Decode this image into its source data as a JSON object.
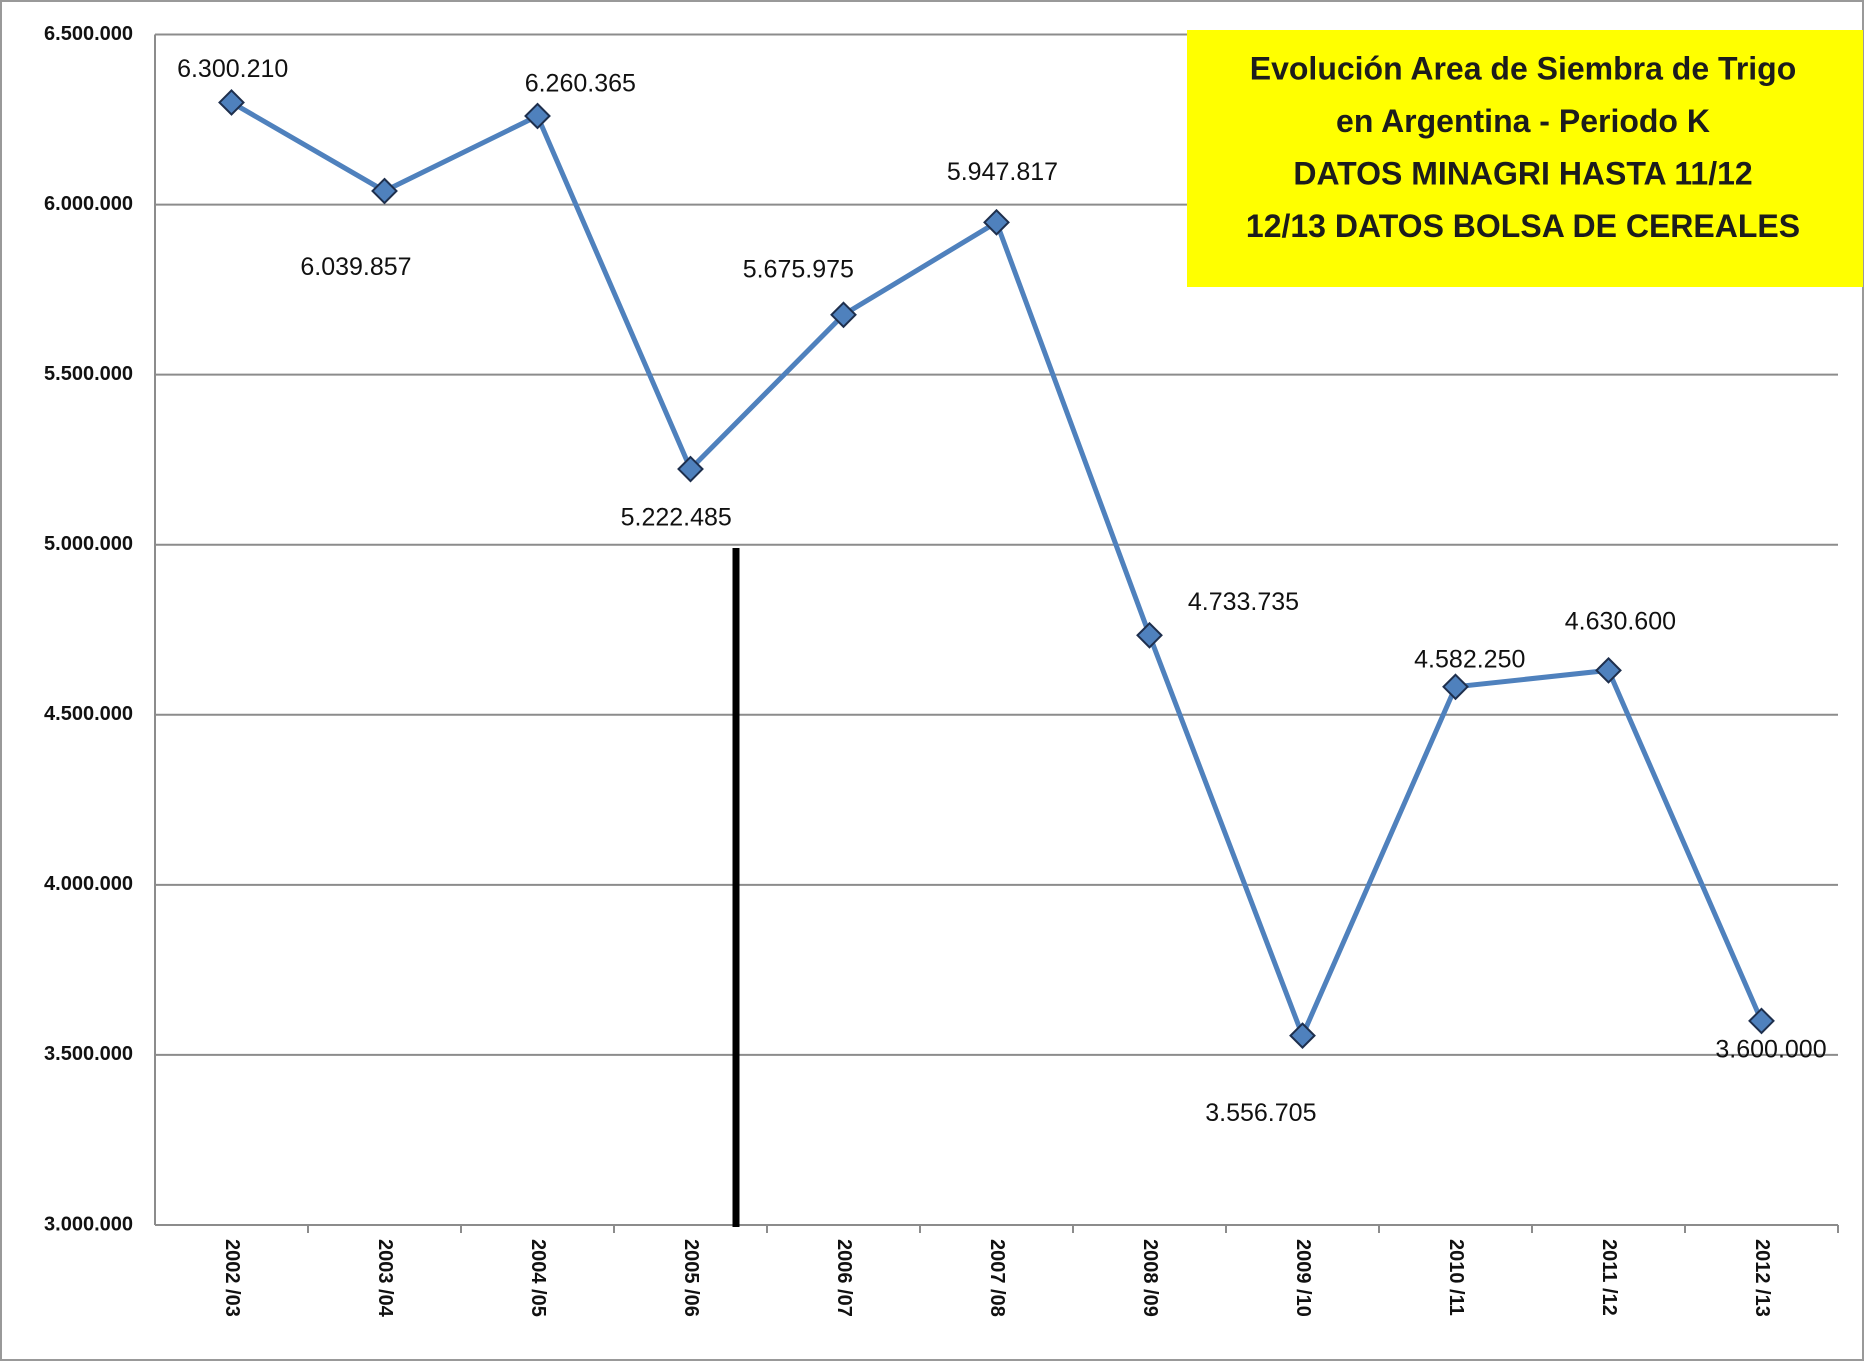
{
  "chart_data": {
    "type": "line",
    "title": [
      "Evolución Area de Siembra de Trigo",
      "en Argentina - Periodo K",
      "DATOS MINAGRI HASTA 11/12",
      "12/13 DATOS BOLSA DE CEREALES"
    ],
    "categories": [
      "2002 /03",
      "2003 /04",
      "2004 /05",
      "2005 /06",
      "2006 /07",
      "2007 /08",
      "2008 /09",
      "2009 /10",
      "2010 /11",
      "2011 /12",
      "2012 /13"
    ],
    "series": [
      {
        "name": "Area de Siembra",
        "color": "#4f81bd",
        "values": [
          6300210,
          6039857,
          6260365,
          5222485,
          5675975,
          5947817,
          4733735,
          3556705,
          4582250,
          4630600,
          3600000
        ],
        "value_labels": [
          "6.300.210",
          "6.039.857",
          "6.260.365",
          "5.222.485",
          "5.675.975",
          "5.947.817",
          "4.733.735",
          "3.556.705",
          "4.582.250",
          "4.630.600",
          "3.600.000"
        ]
      }
    ],
    "ylim": [
      3000000,
      6500000
    ],
    "yticks": [
      {
        "value": 3000000,
        "label": "3.000.000"
      },
      {
        "value": 3500000,
        "label": "3.500.000"
      },
      {
        "value": 4000000,
        "label": "4.000.000"
      },
      {
        "value": 4500000,
        "label": "4.500.000"
      },
      {
        "value": 5000000,
        "label": "5.000.000"
      },
      {
        "value": 5500000,
        "label": "5.500.000"
      },
      {
        "value": 6000000,
        "label": "6.000.000"
      },
      {
        "value": 6500000,
        "label": "6.500.000"
      }
    ],
    "grid": true
  }
}
